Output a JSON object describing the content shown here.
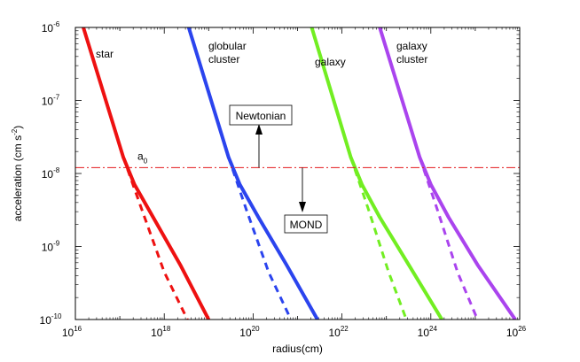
{
  "chart_data": {
    "type": "line",
    "xlabel": "radius(cm)",
    "ylabel": "acceleration (cm s^-2)",
    "ylabel_parts": [
      "acceleration (cm s",
      "-2",
      ")"
    ],
    "x_scale": "log10",
    "y_scale": "log10",
    "xlim_log10": [
      16,
      26
    ],
    "ylim_log10": [
      -10,
      -6
    ],
    "x_ticks_log10": [
      16,
      18,
      20,
      22,
      24,
      26
    ],
    "y_ticks_log10": [
      -10,
      -9,
      -8,
      -7,
      -6
    ],
    "tick_base": "10",
    "a0": {
      "label": "a",
      "subscript": "0",
      "value_log10": -7.92,
      "color": "#e41a1c",
      "style": "dash-dot"
    },
    "series": [
      {
        "name": "star",
        "label_lines": [
          "star"
        ],
        "color": "#ee1111",
        "mond": {
          "x_log10": [
            16.18,
            17.08,
            17.33,
            17.75,
            18.36,
            19.0
          ],
          "y_log10": [
            -6.0,
            -7.78,
            -8.15,
            -8.6,
            -9.25,
            -10.0
          ]
        },
        "newtonian": {
          "x_log10": [
            17.08,
            17.5,
            18.0,
            18.52
          ],
          "y_log10": [
            -7.78,
            -8.5,
            -9.35,
            -10.0
          ]
        }
      },
      {
        "name": "globular cluster",
        "label_lines": [
          "globular",
          "cluster"
        ],
        "color": "#2b44ee",
        "mond": {
          "x_log10": [
            18.55,
            19.45,
            19.7,
            20.12,
            20.75,
            21.45
          ],
          "y_log10": [
            -6.0,
            -7.78,
            -8.15,
            -8.6,
            -9.25,
            -10.0
          ]
        },
        "newtonian": {
          "x_log10": [
            19.45,
            19.85,
            20.35,
            20.85
          ],
          "y_log10": [
            -7.78,
            -8.5,
            -9.35,
            -10.0
          ]
        }
      },
      {
        "name": "galaxy",
        "label_lines": [
          "galaxy"
        ],
        "color": "#72ee22",
        "mond": {
          "x_log10": [
            21.32,
            22.2,
            22.45,
            22.85,
            23.5,
            24.25
          ],
          "y_log10": [
            -6.0,
            -7.78,
            -8.15,
            -8.6,
            -9.25,
            -10.0
          ]
        },
        "newtonian": {
          "x_log10": [
            22.2,
            22.6,
            23.05,
            23.45
          ],
          "y_log10": [
            -7.78,
            -8.5,
            -9.35,
            -10.0
          ]
        }
      },
      {
        "name": "galaxy cluster",
        "label_lines": [
          "galaxy",
          "cluster"
        ],
        "color": "#aa44ee",
        "mond": {
          "x_log10": [
            22.85,
            23.75,
            24.0,
            24.4,
            25.05,
            25.9
          ],
          "y_log10": [
            -6.0,
            -7.78,
            -8.15,
            -8.6,
            -9.25,
            -10.0
          ]
        },
        "newtonian": {
          "x_log10": [
            23.75,
            24.15,
            24.6,
            25.05
          ],
          "y_log10": [
            -7.78,
            -8.5,
            -9.35,
            -10.0
          ]
        }
      }
    ],
    "annotations": {
      "newtonian": {
        "text": "Newtonian",
        "direction": "up"
      },
      "mond": {
        "text": "MOND",
        "direction": "down"
      }
    }
  }
}
